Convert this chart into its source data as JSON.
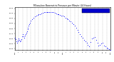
{
  "title": "Milwaukee Barometric Pressure per Minute (24 Hours)",
  "ylim": [
    29.38,
    30.22
  ],
  "xlim": [
    0,
    1440
  ],
  "line_color": "#0000ff",
  "bg_color": "#ffffff",
  "legend_color": "#0000cc",
  "x_tick_labels": [
    "12a",
    "1",
    "2",
    "3",
    "4",
    "5",
    "6",
    "7",
    "8",
    "9",
    "10",
    "11",
    "12p",
    "1",
    "2",
    "3",
    "4",
    "5",
    "6",
    "7",
    "8",
    "9",
    "10",
    "11",
    "12a"
  ],
  "ytick_values": [
    29.4,
    29.5,
    29.6,
    29.7,
    29.8,
    29.9,
    30.0,
    30.1,
    30.2
  ],
  "data_x": [
    0,
    10,
    20,
    30,
    40,
    50,
    60,
    70,
    80,
    90,
    100,
    110,
    120,
    130,
    140,
    150,
    160,
    170,
    180,
    190,
    200,
    210,
    220,
    230,
    240,
    260,
    280,
    300,
    320,
    340,
    360,
    380,
    400,
    420,
    440,
    460,
    480,
    500,
    520,
    540,
    560,
    580,
    600,
    620,
    640,
    660,
    680,
    700,
    720,
    740,
    760,
    780,
    800,
    820,
    840,
    860,
    880,
    900,
    920,
    940,
    960,
    980,
    1000,
    1020,
    1040,
    1060,
    1080,
    1100,
    1120,
    1140,
    1160,
    1180,
    1200,
    1220,
    1240,
    1260,
    1280,
    1300,
    1320,
    1340,
    1360,
    1380,
    1400,
    1420,
    1440
  ],
  "data_y": [
    29.62,
    29.59,
    29.55,
    29.52,
    29.55,
    29.58,
    29.6,
    29.57,
    29.54,
    29.56,
    29.59,
    29.64,
    29.68,
    29.65,
    29.62,
    29.66,
    29.69,
    29.72,
    29.75,
    29.78,
    29.82,
    29.86,
    29.89,
    29.92,
    29.95,
    29.99,
    30.02,
    30.04,
    30.06,
    30.07,
    30.08,
    30.09,
    30.1,
    30.11,
    30.12,
    30.12,
    30.13,
    30.13,
    30.13,
    30.13,
    30.12,
    30.12,
    30.11,
    30.1,
    30.09,
    30.08,
    30.07,
    30.06,
    30.05,
    30.04,
    30.02,
    30.0,
    29.98,
    29.96,
    29.94,
    29.92,
    29.88,
    29.85,
    29.81,
    29.77,
    29.73,
    29.69,
    29.65,
    29.62,
    29.58,
    29.55,
    29.52,
    29.48,
    29.45,
    29.53,
    29.6,
    29.62,
    29.63,
    29.58,
    29.52,
    29.46,
    29.48,
    29.5,
    29.52,
    29.46,
    29.44,
    29.42,
    29.4,
    29.39,
    29.38
  ]
}
